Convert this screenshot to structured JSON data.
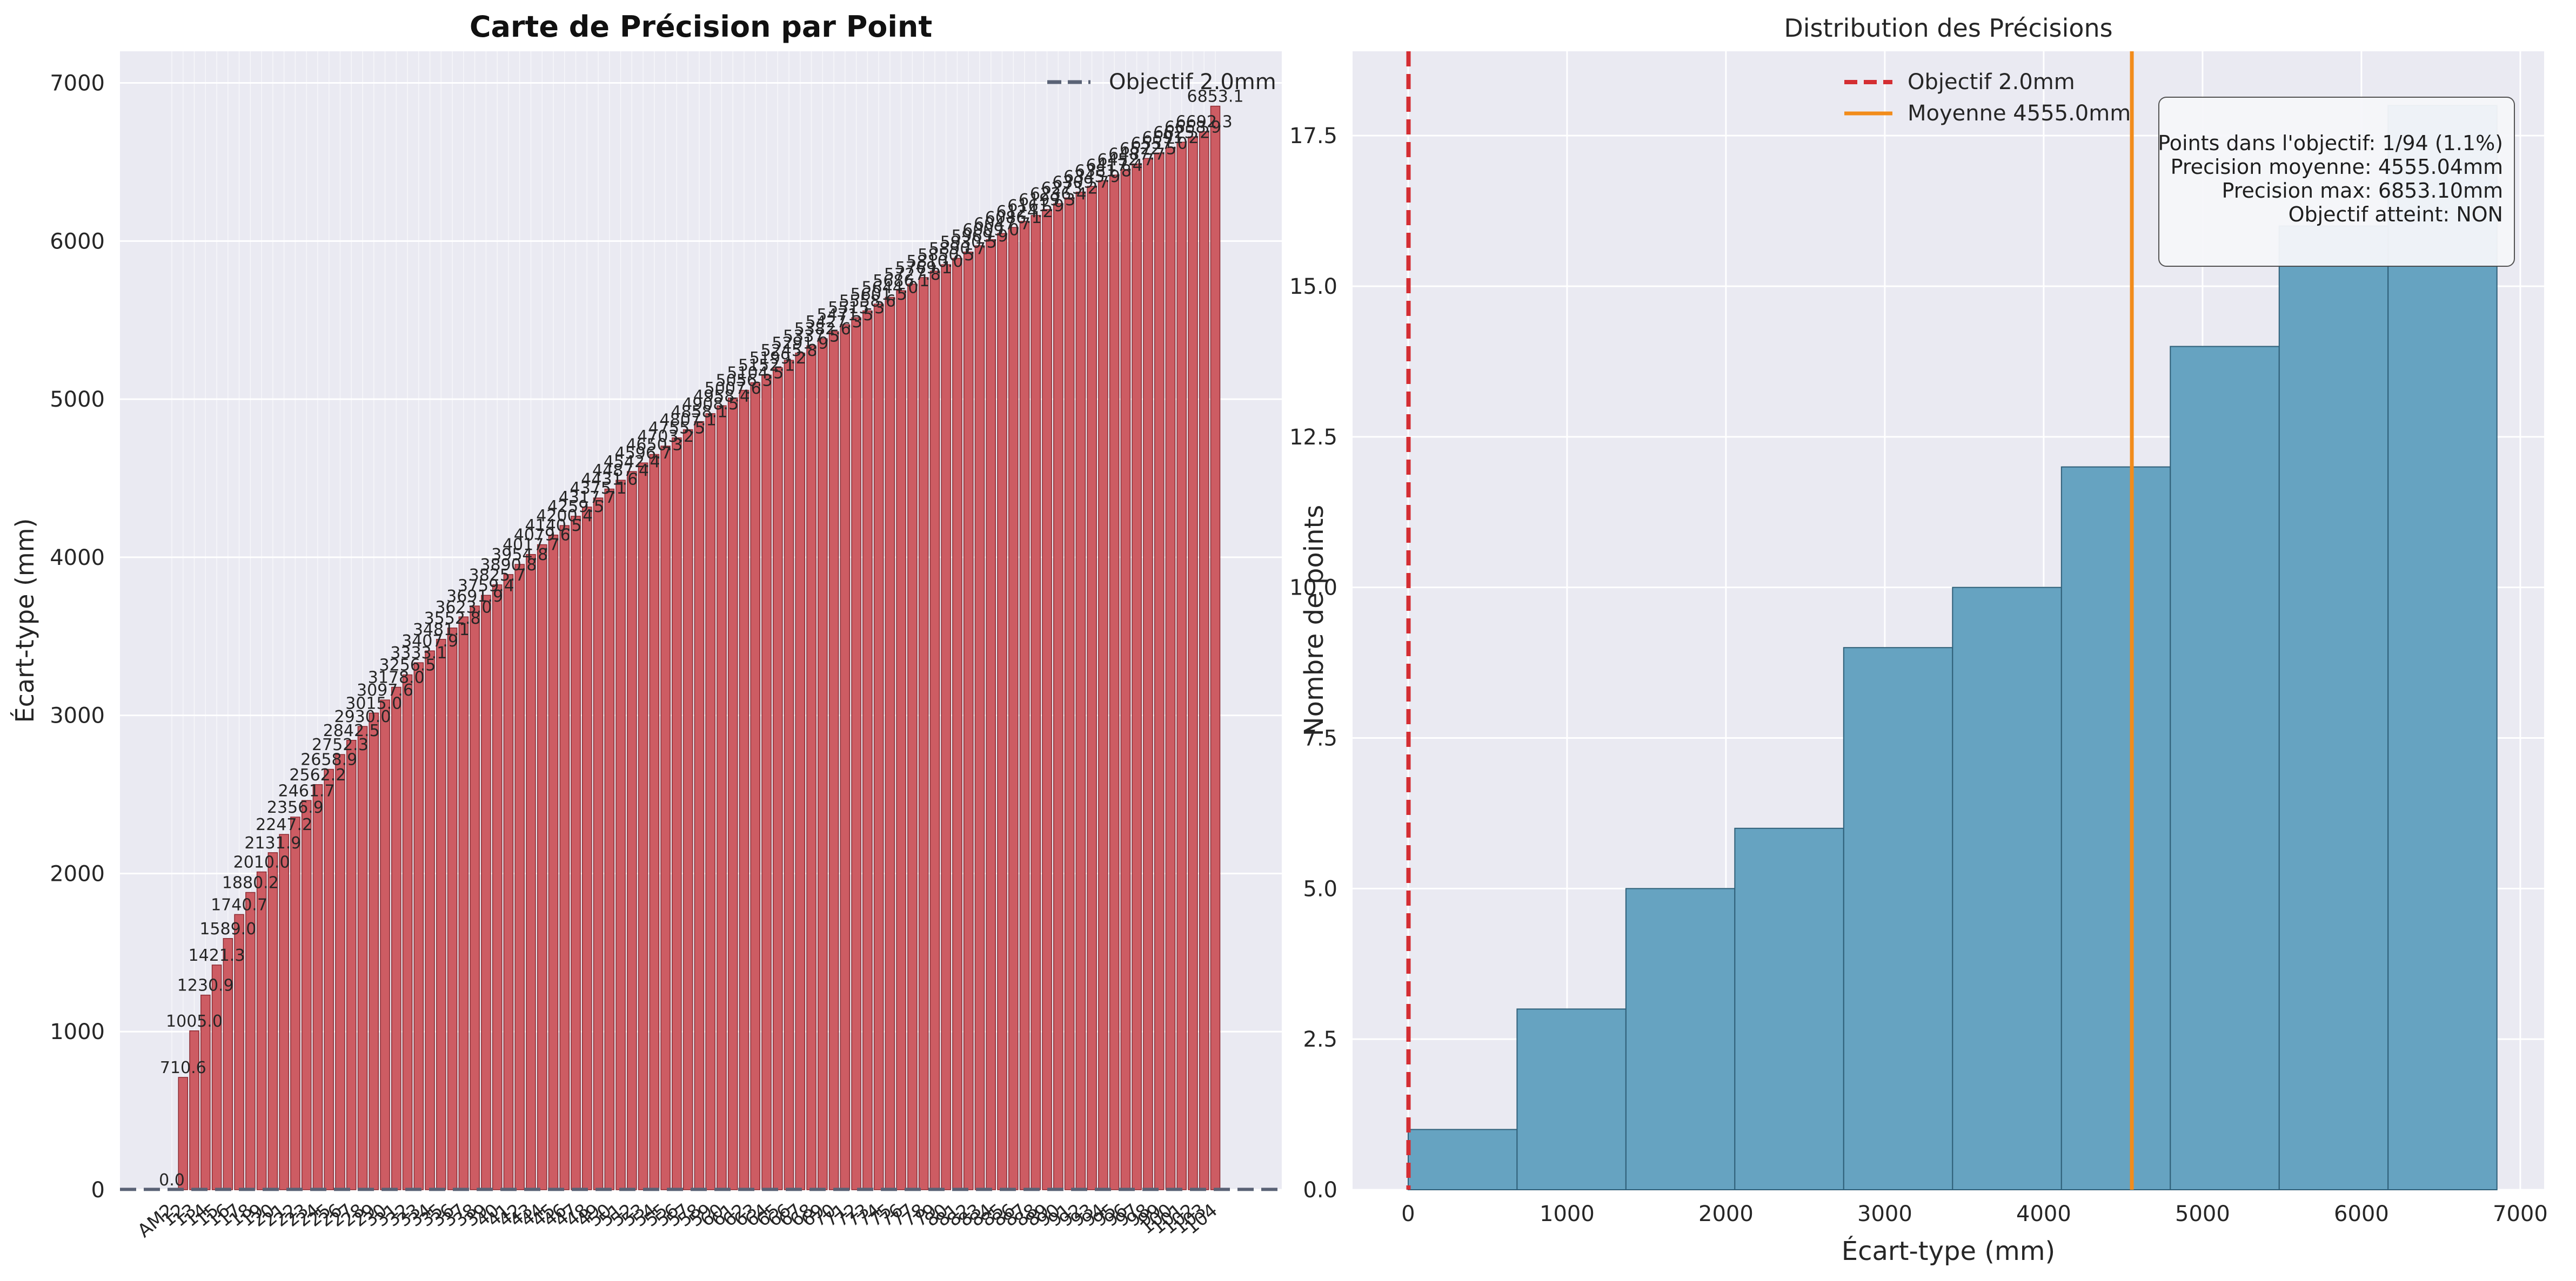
{
  "colors": {
    "panel_bg": "#eaeaf2",
    "grid": "#ffffff",
    "bar_fill": "#cd5c63",
    "bar_edge": "#8b2a31",
    "hist_fill": "#66a3c1",
    "hist_edge": "#2f5f78",
    "target_left": "#5a6275",
    "target_right": "#d42e33",
    "mean_line": "#f28c1b",
    "text": "#262626"
  },
  "chart_data": [
    {
      "type": "bar",
      "title": "Carte de Précision par Point",
      "ylabel": "Écart-type (mm)",
      "xlabel": "",
      "ylim": [
        0,
        7200
      ],
      "yticks": [
        0,
        1000,
        2000,
        3000,
        4000,
        5000,
        6000,
        7000
      ],
      "grid": true,
      "legend": {
        "placement": "top-right",
        "entries": [
          {
            "label": "Objectif 2.0mm",
            "style": "dashed"
          }
        ]
      },
      "target_line": {
        "y": 2.0,
        "label": "Objectif 2.0mm"
      },
      "first_category_label": "AM2",
      "category_labels_note": "94 tick labels; mostly unreadable overlapping numeric IDs",
      "n_points": 94,
      "values": [
        0.0,
        710.6,
        1005.0,
        1230.9,
        1421.3,
        1589.0,
        1740.7,
        1880.2,
        2010.0,
        2131.9,
        2247.2,
        2356.9,
        2461.7,
        2562.2,
        2658.9,
        2752.3,
        2842.5,
        2930.0,
        3015.0,
        3097.6,
        3178.0,
        3256.5,
        3333.1,
        3407.9,
        3481.1,
        3552.8,
        3623.0,
        3691.9,
        3759.4,
        3825.7,
        3890.8,
        3954.8,
        4017.7,
        4079.6,
        4140.5,
        4200.4,
        4259.5,
        4317.7,
        4375.1,
        4431.6,
        4487.4,
        4542.4,
        4596.7,
        4650.3,
        4703.2,
        4755.5,
        4807.1,
        4858.1,
        4908.5,
        4958.4,
        5007.6,
        5056.3,
        5104.5,
        5152.1,
        5199.2,
        5245.8,
        5291.9,
        5337.5,
        5382.6,
        5427.3,
        5471.5,
        5515.3,
        5558.6,
        5601.5,
        5644.0,
        5686.1,
        5727.8,
        5769.1,
        5810.0,
        5850.5,
        5890.7,
        5930.5,
        5969.9,
        6009.0,
        6047.7,
        6086.1,
        6124.2,
        6161.9,
        6199.3,
        6236.4,
        6273.2,
        6309.7,
        6345.9,
        6381.8,
        6417.4,
        6452.7,
        6487.7,
        6522.5,
        6557.0,
        6591.2,
        6625.2,
        6658.9,
        6692.3,
        6853.1
      ],
      "last_value_label": "0.0",
      "top_value_label": "6853.1"
    },
    {
      "type": "histogram",
      "title": "Distribution des Précisions",
      "xlabel": "Écart-type (mm)",
      "ylabel": "Nombre de points",
      "xlim": [
        -350,
        7150
      ],
      "ylim": [
        0,
        18.9
      ],
      "xticks": [
        0,
        1000,
        2000,
        3000,
        4000,
        5000,
        6000,
        7000
      ],
      "yticks": [
        0.0,
        2.5,
        5.0,
        7.5,
        10.0,
        12.5,
        15.0,
        17.5
      ],
      "ytick_labels": [
        "0.0",
        "2.5",
        "5.0",
        "7.5",
        "10.0",
        "12.5",
        "15.0",
        "17.5"
      ],
      "grid": true,
      "bin_edges": [
        0,
        685.3,
        1370.6,
        2055.9,
        2741.2,
        3426.6,
        4111.9,
        4797.2,
        5482.5,
        6167.8,
        6853.1
      ],
      "counts": [
        1,
        3,
        5,
        6,
        9,
        10,
        12,
        14,
        16,
        18
      ],
      "target_line": {
        "x": 2.0,
        "label": "Objectif 2.0mm"
      },
      "mean_line": {
        "x": 4555.0,
        "label": "Moyenne 4555.0mm"
      },
      "legend": {
        "placement": "top-center",
        "entries": [
          {
            "label": "Objectif 2.0mm"
          },
          {
            "label": "Moyenne 4555.0mm"
          }
        ]
      },
      "stats_box": {
        "placement": "top-right",
        "lines": [
          "Points dans l'objectif: 1/94 (1.1%)",
          "Precision moyenne: 4555.04mm",
          "Precision max: 6853.10mm",
          "Objectif atteint: NON"
        ]
      }
    }
  ]
}
